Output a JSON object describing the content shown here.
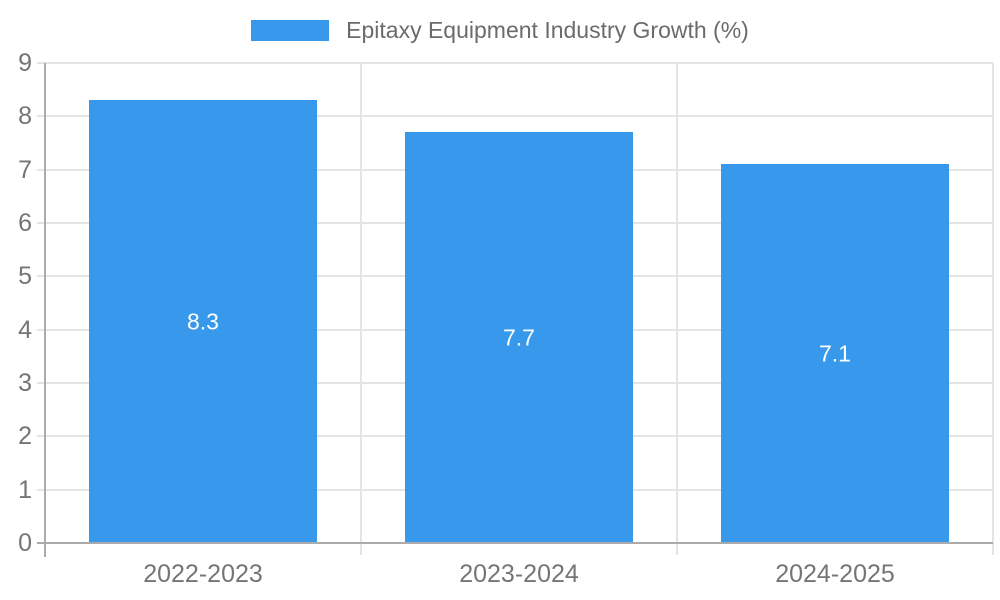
{
  "legend": {
    "label": "Epitaxy Equipment Industry Growth (%)",
    "swatch_color": "#3899EC"
  },
  "chart_data": {
    "type": "bar",
    "categories": [
      "2022-2023",
      "2023-2024",
      "2024-2025"
    ],
    "values": [
      8.3,
      7.7,
      7.1
    ],
    "data_labels": [
      "8.3",
      "7.7",
      "7.1"
    ],
    "series_name": "Epitaxy Equipment Industry Growth (%)",
    "title": "",
    "xlabel": "",
    "ylabel": "",
    "ylim": [
      0,
      9
    ],
    "y_ticks": [
      0,
      1,
      2,
      3,
      4,
      5,
      6,
      7,
      8,
      9
    ],
    "grid": true,
    "legend_position": "top-center",
    "colors": {
      "bar": "#3899EC",
      "data_label": "#FFFFFF",
      "gridline": "#E4E4E4",
      "axis_line": "#ABABAB",
      "tick_label": "#757575",
      "legend_text": "#6B6B6B",
      "background": "#FFFFFF"
    }
  }
}
